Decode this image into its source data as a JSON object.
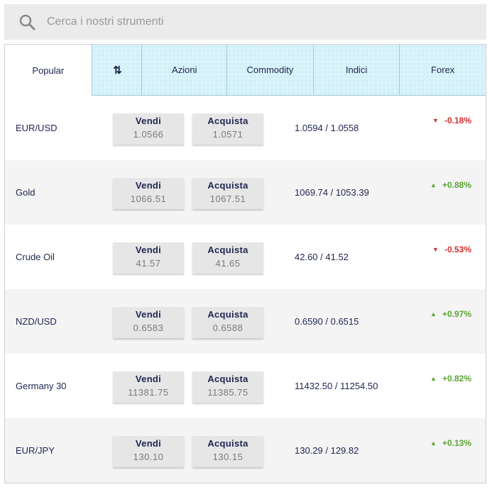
{
  "search": {
    "placeholder": "Cerca i nostri strumenti"
  },
  "tabs": [
    {
      "label": "Popular",
      "active": true
    },
    {
      "label": "⇅",
      "icon": "sort-icon"
    },
    {
      "label": "Azioni"
    },
    {
      "label": "Commodity"
    },
    {
      "label": "Indici"
    },
    {
      "label": "Forex"
    }
  ],
  "instruments": [
    {
      "name": "EUR/USD",
      "sell_label": "Vendi",
      "sell": "1.0566",
      "buy_label": "Acquista",
      "buy": "1.0571",
      "range": "1.0594 / 1.0558",
      "change": "-0.18%",
      "direction": "down"
    },
    {
      "name": "Gold",
      "sell_label": "Vendi",
      "sell": "1066.51",
      "buy_label": "Acquista",
      "buy": "1067.51",
      "range": "1069.74 / 1053.39",
      "change": "+0.88%",
      "direction": "up"
    },
    {
      "name": "Crude Oil",
      "sell_label": "Vendi",
      "sell": "41.57",
      "buy_label": "Acquista",
      "buy": "41.65",
      "range": "42.60 / 41.52",
      "change": "-0.53%",
      "direction": "down"
    },
    {
      "name": "NZD/USD",
      "sell_label": "Vendi",
      "sell": "0.6583",
      "buy_label": "Acquista",
      "buy": "0.6588",
      "range": "0.6590 / 0.6515",
      "change": "+0.97%",
      "direction": "up"
    },
    {
      "name": "Germany 30",
      "sell_label": "Vendi",
      "sell": "11381.75",
      "buy_label": "Acquista",
      "buy": "11385.75",
      "range": "11432.50 / 11254.50",
      "change": "+0.82%",
      "direction": "up"
    },
    {
      "name": "EUR/JPY",
      "sell_label": "Vendi",
      "sell": "130.10",
      "buy_label": "Acquista",
      "buy": "130.15",
      "range": "130.29 / 129.82",
      "change": "+0.13%",
      "direction": "up"
    }
  ],
  "colors": {
    "up": "#5aa532",
    "down": "#d0312d",
    "tab_bg": "#d9f3fa",
    "text": "#1f2450"
  },
  "icons": {
    "search": "search-icon",
    "up": "triangle-up-icon",
    "down": "triangle-down-icon"
  }
}
